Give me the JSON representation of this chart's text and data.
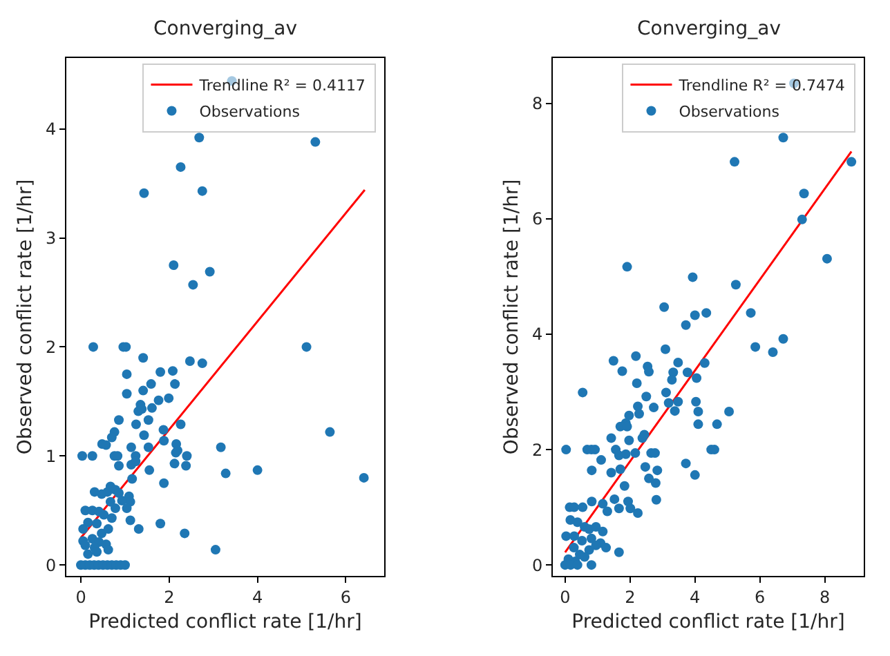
{
  "chart_data": [
    {
      "type": "scatter",
      "title": "Converging_av",
      "xlabel": "Predicted conflict rate [1/hr]",
      "ylabel": "Observed conflict rate [1/hr]",
      "xlim": [
        -0.33,
        6.87
      ],
      "ylim": [
        -0.1,
        4.65
      ],
      "xticks": [
        0,
        2,
        4,
        6
      ],
      "yticks": [
        0,
        1,
        2,
        3,
        4
      ],
      "legend": "top right",
      "series": [
        {
          "name": "Trendline R² = 0.4117",
          "type": "line",
          "color": "#ff0000",
          "marker": "none",
          "x": [
            0.0,
            6.43
          ],
          "values": [
            0.25,
            3.44
          ]
        },
        {
          "name": "Observations",
          "color": "#1f77b4",
          "marker": "circle",
          "x": [
            3.42,
            2.68,
            5.31,
            2.26,
            1.43,
            2.75,
            2.1,
            2.92,
            2.54,
            0.28,
            0.96,
            1.02,
            5.11,
            1.41,
            2.47,
            2.75,
            1.04,
            1.8,
            2.08,
            1.59,
            2.13,
            1.04,
            1.41,
            1.99,
            1.76,
            1.35,
            1.3,
            1.61,
            1.38,
            0.86,
            1.25,
            1.53,
            2.26,
            1.87,
            5.64,
            0.76,
            0.7,
            0.48,
            0.57,
            1.43,
            1.14,
            1.53,
            1.88,
            2.16,
            2.19,
            3.17,
            0.03,
            0.26,
            0.76,
            0.83,
            1.24,
            2.4,
            2.15,
            0.86,
            1.14,
            1.24,
            2.38,
            2.12,
            3.28,
            4.0,
            6.41,
            1.55,
            1.16,
            1.88,
            0.67,
            0.6,
            0.78,
            0.86,
            0.31,
            0.47,
            1.09,
            1.12,
            0.93,
            1.04,
            0.67,
            0.78,
            0.1,
            0.26,
            0.41,
            0.52,
            0.7,
            1.12,
            0.16,
            0.36,
            1.31,
            1.8,
            2.35,
            0.47,
            0.62,
            0.05,
            0.26,
            0.41,
            0.57,
            0.1,
            0.31,
            0.62,
            0.36,
            3.05,
            0.16,
            0.05,
            0.0,
            0.1,
            0.2,
            0.3,
            0.4,
            0.5,
            0.6,
            0.7,
            0.8,
            0.9,
            1.0
          ],
          "values": [
            4.44,
            3.92,
            3.88,
            3.65,
            3.41,
            3.43,
            2.75,
            2.69,
            2.57,
            2.0,
            2.0,
            2.0,
            2.0,
            1.9,
            1.87,
            1.85,
            1.75,
            1.77,
            1.78,
            1.66,
            1.66,
            1.57,
            1.6,
            1.53,
            1.51,
            1.47,
            1.41,
            1.44,
            1.43,
            1.33,
            1.29,
            1.33,
            1.29,
            1.24,
            1.22,
            1.22,
            1.17,
            1.11,
            1.1,
            1.19,
            1.08,
            1.08,
            1.14,
            1.11,
            1.05,
            1.08,
            1.0,
            1.0,
            1.0,
            1.0,
            1.0,
            1.0,
            1.03,
            0.91,
            0.92,
            0.95,
            0.91,
            0.93,
            0.84,
            0.87,
            0.8,
            0.87,
            0.79,
            0.75,
            0.72,
            0.67,
            0.69,
            0.66,
            0.67,
            0.65,
            0.63,
            0.58,
            0.59,
            0.52,
            0.58,
            0.52,
            0.5,
            0.5,
            0.49,
            0.46,
            0.43,
            0.41,
            0.39,
            0.38,
            0.33,
            0.38,
            0.29,
            0.29,
            0.33,
            0.22,
            0.24,
            0.21,
            0.19,
            0.18,
            0.16,
            0.14,
            0.12,
            0.14,
            0.1,
            0.33,
            0,
            0,
            0,
            0,
            0,
            0,
            0,
            0,
            0,
            0,
            0
          ]
        }
      ]
    },
    {
      "type": "scatter",
      "title": "Converging_av",
      "xlabel": "Predicted conflict rate [1/hr]",
      "ylabel": "Observed conflict rate [1/hr]",
      "xlim": [
        -0.38,
        9.2
      ],
      "ylim": [
        -0.19,
        8.79
      ],
      "xticks": [
        0,
        2,
        4,
        6,
        8
      ],
      "yticks": [
        0,
        2,
        4,
        6,
        8
      ],
      "legend": "top right",
      "series": [
        {
          "name": "Trendline R² = 0.7474",
          "type": "line",
          "color": "#ff0000",
          "marker": "none",
          "x": [
            0.0,
            8.82
          ],
          "values": [
            0.22,
            7.17
          ]
        },
        {
          "name": "Observations",
          "color": "#1f77b4",
          "marker": "circle",
          "x": [
            7.05,
            6.72,
            5.22,
            8.82,
            7.36,
            7.3,
            8.07,
            1.91,
            3.93,
            5.26,
            3.05,
            4.0,
            4.35,
            3.72,
            5.72,
            5.86,
            6.72,
            6.4,
            3.09,
            1.49,
            1.76,
            2.18,
            2.54,
            2.58,
            2.21,
            3.48,
            3.33,
            3.29,
            3.77,
            4.05,
            4.3,
            0.54,
            3.11,
            2.5,
            2.73,
            1.97,
            1.87,
            3.19,
            3.48,
            3.38,
            4.03,
            4.1,
            5.05,
            4.1,
            4.68,
            2.24,
            2.28,
            1.42,
            1.7,
            1.91,
            0.03,
            0.68,
            0.81,
            0.92,
            1.56,
            1.97,
            2.38,
            2.44,
            4.5,
            4.6,
            1.11,
            1.66,
            1.87,
            2.16,
            2.65,
            2.77,
            3.72,
            4.0,
            0.82,
            1.42,
            1.7,
            2.47,
            2.84,
            2.58,
            2.79,
            1.83,
            2.81,
            2.24,
            0.14,
            0.28,
            0.54,
            0.82,
            1.16,
            1.52,
            1.94,
            2.01,
            1.3,
            1.66,
            0.16,
            0.38,
            0.6,
            0.74,
            0.95,
            1.16,
            0.03,
            0.28,
            0.52,
            0.81,
            1.09,
            1.26,
            1.66,
            0.27,
            0.45,
            0.74,
            0.95,
            0.1,
            0.31,
            0.6,
            0.0,
            0.17,
            0.38,
            0.81
          ],
          "values": [
            8.35,
            7.41,
            6.99,
            6.99,
            6.44,
            5.99,
            5.31,
            5.17,
            4.99,
            4.86,
            4.47,
            4.33,
            4.37,
            4.16,
            4.37,
            3.78,
            3.92,
            3.69,
            3.74,
            3.54,
            3.36,
            3.62,
            3.44,
            3.35,
            3.15,
            3.51,
            3.34,
            3.21,
            3.34,
            3.24,
            3.5,
            2.99,
            2.99,
            2.92,
            2.73,
            2.59,
            2.46,
            2.81,
            2.83,
            2.67,
            2.83,
            2.66,
            2.66,
            2.44,
            2.44,
            2.75,
            2.62,
            2.2,
            2.4,
            2.4,
            2.0,
            2.0,
            2.0,
            2.0,
            2.0,
            2.16,
            2.2,
            2.26,
            2.0,
            2.0,
            1.82,
            1.9,
            1.92,
            1.94,
            1.94,
            1.94,
            1.76,
            1.56,
            1.64,
            1.6,
            1.66,
            1.7,
            1.64,
            1.5,
            1.42,
            1.37,
            1.13,
            0.9,
            1.0,
            1.0,
            1.0,
            1.1,
            1.06,
            1.14,
            1.1,
            0.98,
            0.93,
            0.98,
            0.78,
            0.74,
            0.66,
            0.62,
            0.66,
            0.58,
            0.5,
            0.5,
            0.42,
            0.46,
            0.38,
            0.3,
            0.22,
            0.3,
            0.18,
            0.26,
            0.34,
            0.1,
            0.06,
            0.14,
            0,
            0,
            0,
            0
          ]
        }
      ]
    }
  ]
}
